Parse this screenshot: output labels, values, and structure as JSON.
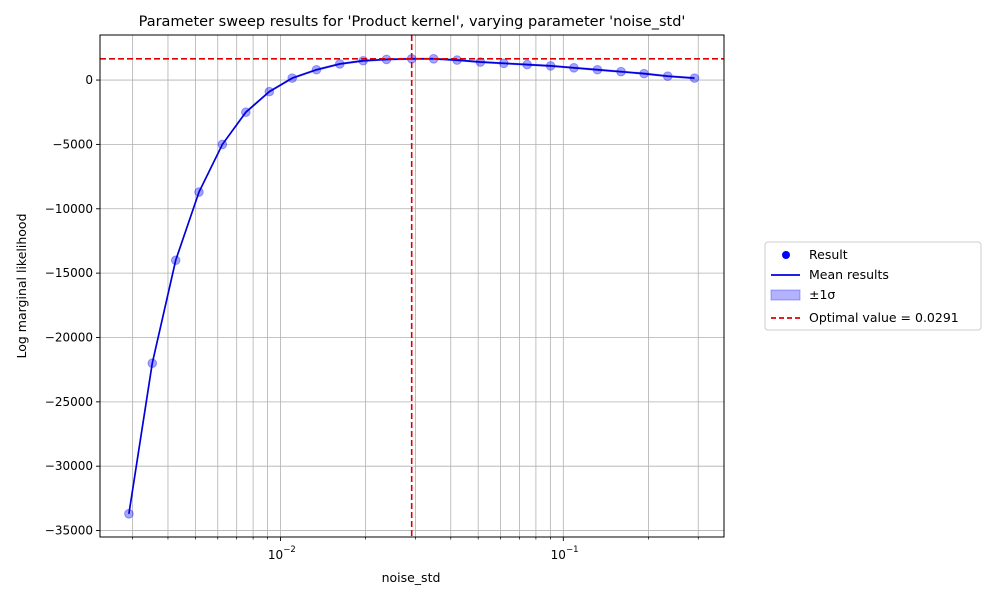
{
  "chart_data": {
    "type": "scatter",
    "title": "Parameter sweep results for 'Product kernel', varying parameter 'noise_std'",
    "xlabel": "noise_std",
    "ylabel": "Log marginal likelihood",
    "x_scale": "log",
    "xlim": [
      0.0023,
      0.37
    ],
    "ylim": [
      -35500,
      3500
    ],
    "x_tick_labels": [
      {
        "value": 0.01,
        "base": "10",
        "exp": "−2"
      },
      {
        "value": 0.1,
        "base": "10",
        "exp": "−1"
      }
    ],
    "y_ticks": [
      0,
      -5000,
      -10000,
      -15000,
      -20000,
      -25000,
      -30000,
      -35000
    ],
    "y_tick_labels": [
      "0",
      "−5000",
      "−10000",
      "−15000",
      "−20000",
      "−25000",
      "−30000",
      "−35000"
    ],
    "grid": true,
    "legend_position": "outside right",
    "series": [
      {
        "name": "Result",
        "kind": "scatter",
        "color": "#0000ff",
        "x": [
          0.00291,
          0.00352,
          0.00426,
          0.00515,
          0.00623,
          0.00754,
          0.00913,
          0.011,
          0.0134,
          0.0162,
          0.0196,
          0.0237,
          0.0291,
          0.0348,
          0.0421,
          0.0509,
          0.0616,
          0.0745,
          0.0902,
          0.109,
          0.132,
          0.16,
          0.193,
          0.234,
          0.291
        ],
        "y": [
          -33700,
          -22000,
          -14000,
          -8700,
          -5000,
          -2500,
          -900,
          150,
          800,
          1250,
          1500,
          1600,
          1650,
          1650,
          1550,
          1400,
          1300,
          1200,
          1100,
          950,
          800,
          650,
          500,
          300,
          150
        ]
      },
      {
        "name": "Mean results",
        "kind": "line",
        "color": "#0000dd",
        "x": [
          0.00291,
          0.00352,
          0.00426,
          0.00515,
          0.00623,
          0.00754,
          0.00913,
          0.011,
          0.0134,
          0.0162,
          0.0196,
          0.0237,
          0.0291,
          0.0348,
          0.0421,
          0.0509,
          0.0616,
          0.0745,
          0.0902,
          0.109,
          0.132,
          0.16,
          0.193,
          0.234,
          0.291
        ],
        "y": [
          -33700,
          -22000,
          -14000,
          -8700,
          -5000,
          -2500,
          -900,
          150,
          800,
          1250,
          1500,
          1600,
          1650,
          1650,
          1550,
          1400,
          1300,
          1200,
          1100,
          950,
          800,
          650,
          500,
          300,
          150
        ]
      },
      {
        "name": "±1σ",
        "kind": "band",
        "color": "#0000ff"
      }
    ],
    "optimal": {
      "label": "Optimal value = 0.0291",
      "x": 0.0291,
      "y": 1650,
      "color": "#dd0000"
    }
  }
}
